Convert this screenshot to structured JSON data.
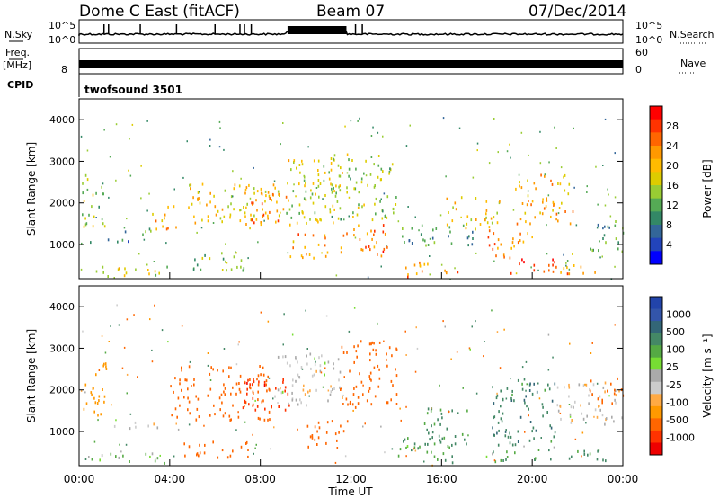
{
  "header": {
    "station": "Dome C East (fitACF)",
    "beam": "Beam 07",
    "date": "07/Dec/2014"
  },
  "colors": {
    "frame": "#000000",
    "data_black": "#000000"
  },
  "top_panels": {
    "nsky_label": "N.Sky",
    "nsky_ticks": [
      "10^5",
      "10^0"
    ],
    "nsearch_label": "N.Search",
    "nsearch_ticks": [
      "10^5",
      "10^0"
    ],
    "freq_label": "Freq.",
    "freq_unit": "[MHz]",
    "freq_ticks": [
      "8"
    ],
    "nave_label": "Nave",
    "nave_ticks": [
      "60",
      "0"
    ],
    "cpid_label": "CPID",
    "cpid_value": "twofsound 3501"
  },
  "axes": {
    "ylabel": "Slant Range [km]",
    "xlabel": "Time UT",
    "x_ticks": [
      "00:00",
      "04:00",
      "08:00",
      "12:00",
      "16:00",
      "20:00",
      "00:00"
    ],
    "y_ticks": [
      1000,
      2000,
      3000,
      4000
    ]
  },
  "chart_data": [
    {
      "type": "heatmap",
      "title": "Power [dB]",
      "xlabel": "Time UT",
      "ylabel": "Slant Range [km]",
      "xlim": [
        "00:00",
        "24:00"
      ],
      "ylim": [
        180,
        4500
      ],
      "colorbar": {
        "label": "Power [dB]",
        "ticks": [
          "28",
          "24",
          "20",
          "16",
          "12",
          "8",
          "4"
        ],
        "colors": [
          "#ff0000",
          "#ff3300",
          "#ff6600",
          "#ff9900",
          "#ffbb00",
          "#ddcc00",
          "#99cc33",
          "#55aa55",
          "#338866",
          "#336699",
          "#2244bb",
          "#0000ff"
        ]
      },
      "regions": [
        {
          "t0": 0.1,
          "t1": 1.2,
          "r0": 1400,
          "r1": 2700,
          "p": 14
        },
        {
          "t0": 0.2,
          "t1": 3.2,
          "r0": 1050,
          "r1": 1150,
          "p": 8
        },
        {
          "t0": 0.2,
          "t1": 4.0,
          "r0": 250,
          "r1": 500,
          "p": 16
        },
        {
          "t0": 1.6,
          "t1": 3.2,
          "r0": 1250,
          "r1": 1450,
          "p": 10
        },
        {
          "t0": 3.2,
          "t1": 4.4,
          "r0": 1400,
          "r1": 2000,
          "p": 20
        },
        {
          "t0": 4.8,
          "t1": 8.6,
          "r0": 1400,
          "r1": 2500,
          "p": 18
        },
        {
          "t0": 5.0,
          "t1": 7.5,
          "r0": 400,
          "r1": 900,
          "p": 12
        },
        {
          "t0": 7.2,
          "t1": 9.2,
          "r0": 1500,
          "r1": 2300,
          "p": 24
        },
        {
          "t0": 8.6,
          "t1": 11.6,
          "r0": 1500,
          "r1": 3100,
          "p": 16
        },
        {
          "t0": 9.2,
          "t1": 11.0,
          "r0": 700,
          "r1": 1300,
          "p": 22
        },
        {
          "t0": 11.0,
          "t1": 14.0,
          "r0": 1600,
          "r1": 3200,
          "p": 14
        },
        {
          "t0": 11.5,
          "t1": 13.6,
          "r0": 700,
          "r1": 1500,
          "p": 24
        },
        {
          "t0": 14.2,
          "t1": 16.8,
          "r0": 250,
          "r1": 600,
          "p": 22
        },
        {
          "t0": 14.2,
          "t1": 17.5,
          "r0": 1000,
          "r1": 1500,
          "p": 8
        },
        {
          "t0": 16.2,
          "t1": 18.6,
          "r0": 1400,
          "r1": 2200,
          "p": 18
        },
        {
          "t0": 18.0,
          "t1": 20.0,
          "r0": 700,
          "r1": 1400,
          "p": 24
        },
        {
          "t0": 19.0,
          "t1": 21.0,
          "r0": 300,
          "r1": 700,
          "p": 26
        },
        {
          "t0": 19.2,
          "t1": 21.8,
          "r0": 1500,
          "r1": 2700,
          "p": 20
        },
        {
          "t0": 21.0,
          "t1": 23.0,
          "r0": 300,
          "r1": 600,
          "p": 22
        },
        {
          "t0": 22.5,
          "t1": 24.0,
          "r0": 800,
          "r1": 1600,
          "p": 10
        }
      ]
    },
    {
      "type": "heatmap",
      "title": "Velocity [m s^-1]",
      "xlabel": "Time UT",
      "ylabel": "Slant Range [km]",
      "xlim": [
        "00:00",
        "24:00"
      ],
      "ylim": [
        180,
        4500
      ],
      "colorbar": {
        "label": "Velocity [m s⁻¹]",
        "ticks": [
          "1000",
          "500",
          "100",
          "25",
          "-25",
          "-100",
          "-500",
          "-1000"
        ],
        "colors": [
          "#2244aa",
          "#3355aa",
          "#336677",
          "#448866",
          "#55aa44",
          "#77dd33",
          "#aaaaaa",
          "#cccccc",
          "#ffaa44",
          "#ff9900",
          "#ff6600",
          "#ff3300",
          "#ee0000"
        ]
      },
      "regions": [
        {
          "t0": 0.1,
          "t1": 1.2,
          "r0": 1400,
          "r1": 2700,
          "v": -80
        },
        {
          "t0": 0.2,
          "t1": 4.0,
          "r0": 250,
          "r1": 500,
          "v": 60
        },
        {
          "t0": 1.5,
          "t1": 3.5,
          "r0": 1100,
          "r1": 1300,
          "v": -10
        },
        {
          "t0": 4.0,
          "t1": 8.5,
          "r0": 1300,
          "r1": 2600,
          "v": -150
        },
        {
          "t0": 4.5,
          "t1": 7.6,
          "r0": 400,
          "r1": 800,
          "v": -120
        },
        {
          "t0": 7.0,
          "t1": 9.3,
          "r0": 1500,
          "r1": 2300,
          "v": -400
        },
        {
          "t0": 8.6,
          "t1": 11.6,
          "r0": 1600,
          "r1": 2900,
          "v": 0
        },
        {
          "t0": 10.0,
          "t1": 12.0,
          "r0": 600,
          "r1": 1300,
          "v": -150
        },
        {
          "t0": 11.5,
          "t1": 14.0,
          "r0": 1600,
          "r1": 3200,
          "v": -120
        },
        {
          "t0": 14.0,
          "t1": 16.5,
          "r0": 250,
          "r1": 900,
          "v": 90
        },
        {
          "t0": 15.2,
          "t1": 17.2,
          "r0": 700,
          "r1": 1600,
          "v": 150
        },
        {
          "t0": 17.5,
          "t1": 19.5,
          "r0": 300,
          "r1": 600,
          "v": 80
        },
        {
          "t0": 18.2,
          "t1": 21.0,
          "r0": 700,
          "r1": 2300,
          "v": 200
        },
        {
          "t0": 20.0,
          "t1": 23.5,
          "r0": 300,
          "r1": 600,
          "v": 130
        },
        {
          "t0": 21.0,
          "t1": 24.0,
          "r0": 1200,
          "r1": 2200,
          "v": -10
        },
        {
          "t0": 22.5,
          "t1": 24.0,
          "r0": 1700,
          "r1": 2300,
          "v": -200
        }
      ]
    }
  ]
}
